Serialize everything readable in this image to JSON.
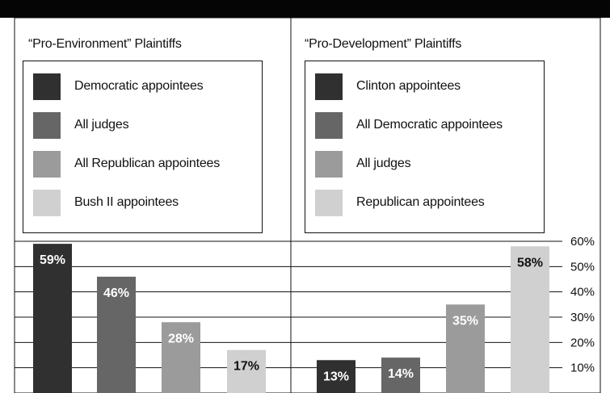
{
  "chart_data": [
    {
      "type": "bar",
      "title": "“Pro-Environment” Plaintiffs",
      "categories": [
        "Democratic appointees",
        "All judges",
        "All Republican appointees",
        "Bush II appointees"
      ],
      "values": [
        59,
        46,
        28,
        17
      ],
      "value_labels": [
        "59%",
        "46%",
        "28%",
        "17%"
      ],
      "colors": [
        "#303030",
        "#666666",
        "#9b9b9b",
        "#d0d0d0"
      ],
      "label_colors": [
        "#ffffff",
        "#ffffff",
        "#ffffff",
        "#111111"
      ],
      "ylabel": "",
      "ylim": [
        0,
        60
      ],
      "grid": true,
      "legend": "top"
    },
    {
      "type": "bar",
      "title": "“Pro-Development” Plaintiffs",
      "categories": [
        "Clinton appointees",
        "All Democratic appointees",
        "All judges",
        "Republican appointees"
      ],
      "values": [
        13,
        14,
        35,
        58
      ],
      "value_labels": [
        "13%",
        "14%",
        "35%",
        "58%"
      ],
      "colors": [
        "#303030",
        "#666666",
        "#9b9b9b",
        "#d0d0d0"
      ],
      "label_colors": [
        "#ffffff",
        "#ffffff",
        "#ffffff",
        "#111111"
      ],
      "ylabel": "",
      "ylim": [
        0,
        60
      ],
      "grid": true,
      "legend": "top"
    }
  ],
  "axis": {
    "ticks": [
      10,
      20,
      30,
      40,
      50,
      60
    ],
    "tick_labels": [
      "10%",
      "20%",
      "30%",
      "40%",
      "50%",
      "60%"
    ]
  },
  "palette": {
    "background": "#ffffff",
    "text": "#111111",
    "grid": "#111111",
    "frame": "#111111",
    "top_bar": "#050505"
  }
}
